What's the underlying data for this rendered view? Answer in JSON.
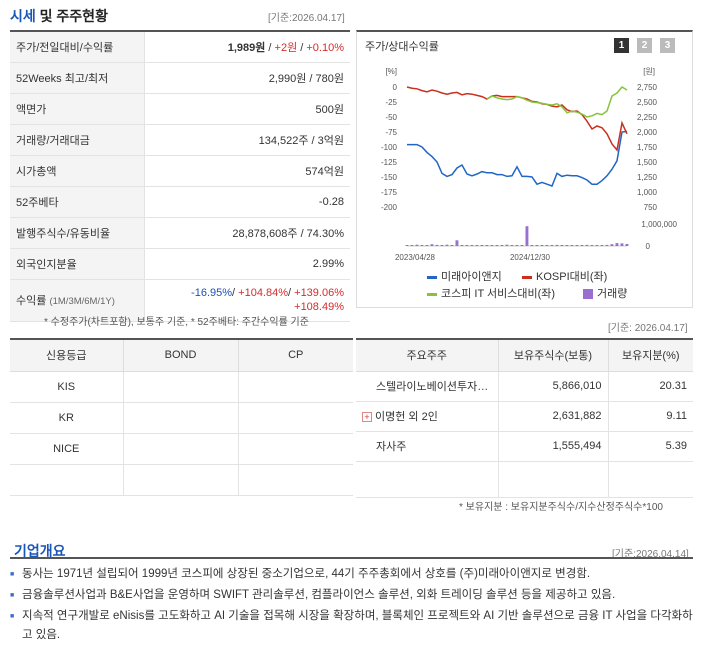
{
  "price_section": {
    "title_a": "시세",
    "title_b": "및 주주현황",
    "ref_date": "[기준:2026.04.17]",
    "rows": [
      {
        "label": "주가/전일대비/수익률",
        "v1": "1,989원",
        "sep1": " / ",
        "v2": "+2원",
        "sep2": " / ",
        "v3": "+0.10%"
      },
      {
        "label": "52Weeks 최고/최저",
        "value": "2,990원 / 780원"
      },
      {
        "label": "액면가",
        "value": "500원"
      },
      {
        "label": "거래량/거래대금",
        "value": "134,522주 / 3억원"
      },
      {
        "label": "시가총액",
        "value": "574억원"
      },
      {
        "label": "52주베타",
        "value": "-0.28"
      },
      {
        "label": "발행주식수/유동비율",
        "value": "28,878,608주 / 74.30%"
      },
      {
        "label": "외국인지분율",
        "value": "2.99%"
      }
    ],
    "returns": {
      "label": "수익률",
      "sublabel": "(1M/3M/6M/1Y)",
      "m1": "-16.95%",
      "m3": "+104.84%",
      "m6": "+139.06%",
      "y1": "+108.49%",
      "sep": "/ "
    },
    "footnote": "* 수정주가(차트포함), 보통주 기준, * 52주베타: 주간수익률 기준"
  },
  "chart": {
    "title": "주가/상대수익률",
    "period_buttons": [
      "1",
      "2",
      "3"
    ],
    "colors": {
      "stock": "#2166c4",
      "kospi": "#c9301e",
      "it": "#86c43a",
      "volume": "#9a6fd0"
    }
  },
  "chart_data": {
    "type": "line",
    "x_ticks": [
      "2023/04/28",
      "2024/12/30"
    ],
    "left_axis": {
      "unit": "[%]",
      "ticks": [
        "0",
        "-25",
        "-50",
        "-75",
        "-100",
        "-125",
        "-150",
        "-175",
        "-200"
      ],
      "ylim": [
        -200,
        0
      ]
    },
    "right_axis": {
      "unit": "[원]",
      "ticks": [
        "2,750",
        "2,500",
        "2,250",
        "2,000",
        "1,750",
        "1,500",
        "1,250",
        "1,000",
        "750"
      ],
      "ylim": [
        750,
        2750
      ]
    },
    "volume_axis": {
      "ticks": [
        "1,000,000",
        "0"
      ],
      "ylim": [
        0,
        1000000
      ]
    },
    "series": [
      {
        "name": "미래아이앤지",
        "axis": "right",
        "values": [
          1790,
          1790,
          1790,
          1750,
          1660,
          1590,
          1500,
          1310,
          1260,
          1290,
          1400,
          1450,
          1300,
          1270,
          1300,
          1340,
          1320,
          1320,
          1290,
          1290,
          1260,
          1270,
          1420,
          1260,
          1260,
          1250,
          1130,
          1160,
          1130,
          1100,
          1310,
          1260,
          1280,
          1270,
          1270,
          1240,
          1200,
          1130,
          1130,
          1190,
          1270,
          1380,
          1520,
          2000,
          2010
        ]
      },
      {
        "name": "KOSPI대비(좌)",
        "axis": "left",
        "values": [
          0,
          -2,
          -3,
          -6,
          -8,
          -5,
          -7,
          -10,
          -12,
          -10,
          -9,
          -13,
          -11,
          -12,
          -14,
          -16,
          -20,
          -15,
          -14,
          -16,
          -16,
          -16,
          -16,
          -18,
          -20,
          -24,
          -25,
          -28,
          -29,
          -32,
          -33,
          -30,
          -38,
          -41,
          -40,
          -46,
          -57,
          -70,
          -65,
          -68,
          -78,
          -95,
          -105,
          -60,
          -78
        ]
      },
      {
        "name": "코스피 IT 서비스대비(좌)",
        "axis": "left",
        "values": [
          null,
          null,
          null,
          null,
          null,
          null,
          null,
          null,
          null,
          null,
          null,
          null,
          null,
          null,
          null,
          null,
          -20,
          -15,
          -18,
          -20,
          -21,
          -20,
          -16,
          -18,
          -22,
          -25,
          -26,
          -27,
          -29,
          -30,
          -28,
          -33,
          -43,
          -40,
          -42,
          -45,
          -50,
          -48,
          -44,
          -46,
          -40,
          -15,
          -10,
          0,
          -5
        ]
      },
      {
        "name": "거래량",
        "axis": "volume",
        "values": [
          20000,
          30000,
          60000,
          40000,
          30000,
          80000,
          50000,
          40000,
          60000,
          40000,
          260000,
          20000,
          40000,
          30000,
          20000,
          40000,
          20000,
          30000,
          30000,
          20000,
          60000,
          30000,
          20000,
          30000,
          900000,
          40000,
          20000,
          30000,
          20000,
          30000,
          50000,
          30000,
          20000,
          30000,
          40000,
          20000,
          50000,
          30000,
          20000,
          30000,
          50000,
          80000,
          130000,
          120000,
          90000
        ]
      }
    ],
    "legend": [
      "미래아이앤지",
      "KOSPI대비(좌)",
      "코스피 IT 서비스대비(좌)",
      "거래량"
    ]
  },
  "ownership_ref": "[기준: 2026.04.17]",
  "credit": {
    "headers": [
      "신용등급",
      "BOND",
      "CP"
    ],
    "rows": [
      [
        "KIS",
        "",
        ""
      ],
      [
        "KR",
        "",
        ""
      ],
      [
        "NICE",
        "",
        ""
      ],
      [
        "",
        "",
        ""
      ]
    ]
  },
  "holders": {
    "headers": [
      "주요주주",
      "보유주식수(보통)",
      "보유지분(%)"
    ],
    "rows": [
      {
        "name": "스텔라이노베이션투자…",
        "shares": "5,866,010",
        "pct": "20.31",
        "expand": false
      },
      {
        "name": "이명헌 외 2인",
        "shares": "2,631,882",
        "pct": "9.11",
        "expand": true
      },
      {
        "name": "자사주",
        "shares": "1,555,494",
        "pct": "5.39",
        "expand": false
      }
    ],
    "footnote": "* 보유지분 : 보유지분주식수/지수산정주식수*100"
  },
  "company": {
    "title": "기업개요",
    "ref_date": "[기준:2026.04.14]",
    "items": [
      "동사는 1971년 설립되어 1999년 코스피에 상장된 중소기업으로, 44기 주주총회에서 상호를 (주)미래아이앤지로 변경함.",
      "금융솔루션사업과 B&E사업을 운영하며 SWIFT 관리솔루션, 컴플라이언스 솔루션, 외화 트레이딩 솔루션 등을 제공하고 있음.",
      "지속적 연구개발로 eNisis를 고도화하고 AI 기술을 접목해 시장을 확장하며, 블록체인 프로젝트와 AI 기반 솔루션으로 금융 IT 사업을 다각화하고 있음."
    ]
  }
}
